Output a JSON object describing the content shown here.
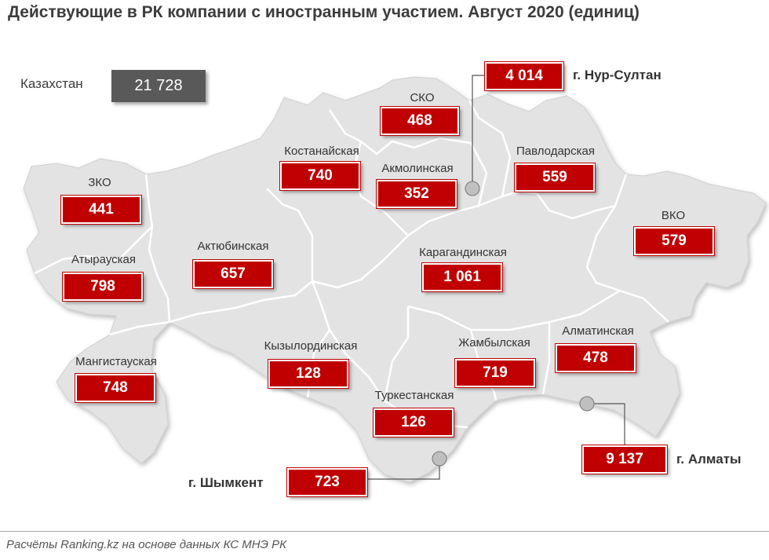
{
  "title": "Действующие в РК компании с иностранным участием. Август 2020  (единиц)",
  "total": {
    "label": "Казахстан",
    "value": "21 728"
  },
  "colors": {
    "map_fill": "#e3e3e3",
    "border": "#ffffff",
    "value_box": "#c00000",
    "total_box": "#595959"
  },
  "regions": {
    "sko": {
      "name": "СКО",
      "value": "468"
    },
    "kostanay": {
      "name": "Костанайская",
      "value": "740"
    },
    "akmola": {
      "name": "Акмолинская",
      "value": "352"
    },
    "pavlodar": {
      "name": "Павлодарская",
      "value": "559"
    },
    "zko": {
      "name": "ЗКО",
      "value": "441"
    },
    "atyrau": {
      "name": "Атырауская",
      "value": "798"
    },
    "aktobe": {
      "name": "Актюбинская",
      "value": "657"
    },
    "karaganda": {
      "name": "Карагандинская",
      "value": "1 061"
    },
    "vko": {
      "name": "ВКО",
      "value": "579"
    },
    "mangystau": {
      "name": "Мангистауская",
      "value": "748"
    },
    "kyzylorda": {
      "name": "Кызылординская",
      "value": "128"
    },
    "zhambyl": {
      "name": "Жамбылская",
      "value": "719"
    },
    "almaty_region": {
      "name": "Алматинская",
      "value": "478"
    },
    "turkestan": {
      "name": "Туркестанская",
      "value": "126"
    }
  },
  "cities": {
    "nur_sultan": {
      "name": "г. Нур-Султан",
      "value": "4 014"
    },
    "almaty": {
      "name": "г. Алматы",
      "value": "9 137"
    },
    "shymkent": {
      "name": "г. Шымкент",
      "value": "723"
    }
  },
  "source": "Расчёты Ranking.kz на основе данных КС МНЭ РК"
}
